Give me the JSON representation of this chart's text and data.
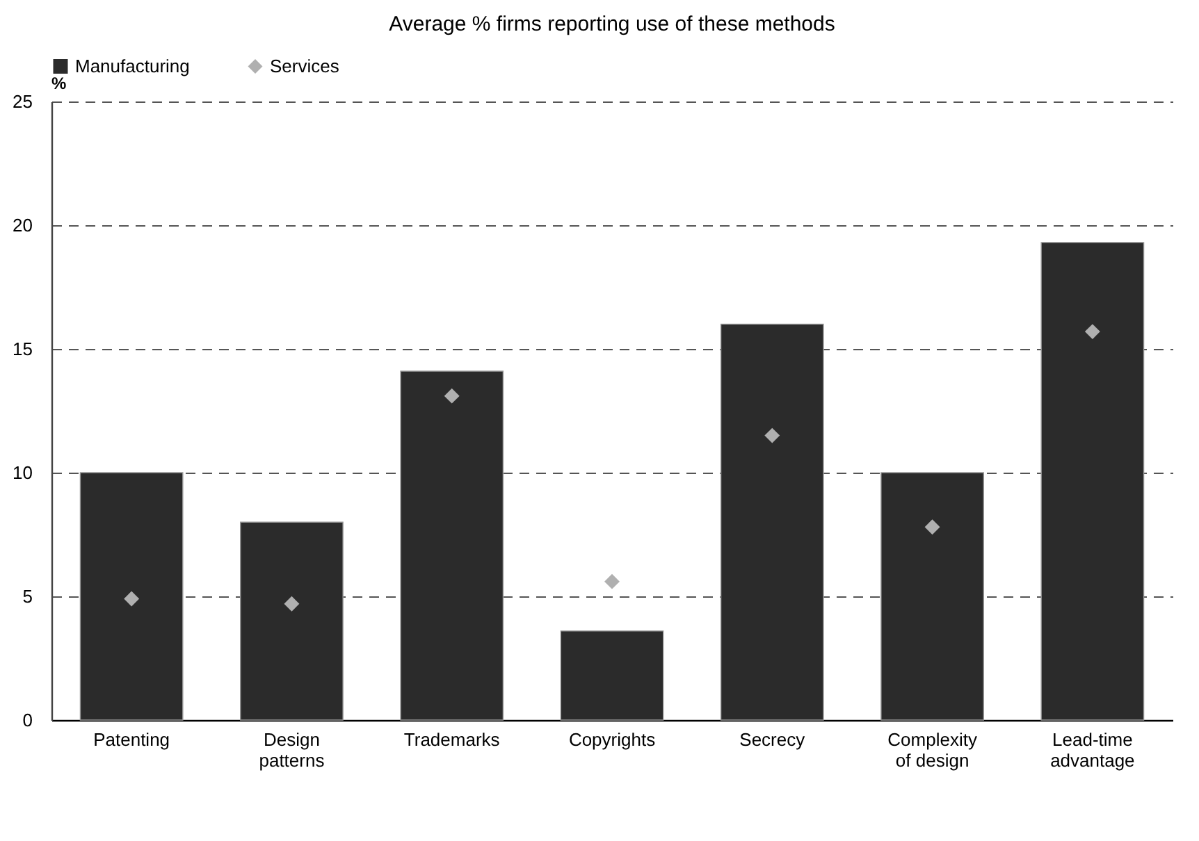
{
  "chart_data": {
    "type": "bar",
    "title": "Average % firms reporting use of these methods",
    "ylabel": "%",
    "categories": [
      "Patenting",
      "Design\npatterns",
      "Trademarks",
      "Copyrights",
      "Secrecy",
      "Complexity\nof design",
      "Lead-time\nadvantage"
    ],
    "series": [
      {
        "name": "Manufacturing",
        "color": "#2b2b2b",
        "values": [
          10.0,
          8.0,
          14.1,
          3.6,
          16.0,
          10.0,
          19.3
        ]
      },
      {
        "name": "Services",
        "type": "scatter",
        "marker": "diamond",
        "color": "#b0b0b0",
        "values": [
          4.9,
          4.7,
          13.1,
          5.6,
          11.5,
          7.8,
          15.7
        ]
      }
    ],
    "ylim": [
      0,
      25
    ],
    "yticks": [
      0,
      5,
      10,
      15,
      20,
      25
    ],
    "grid": "y",
    "legend": "top"
  }
}
